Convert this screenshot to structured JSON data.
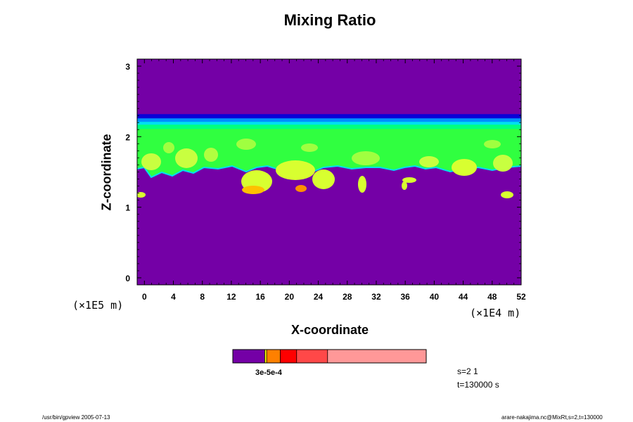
{
  "chart_data": {
    "type": "heatmap",
    "title": "Mixing Ratio",
    "xlabel": "X-coordinate",
    "ylabel": "Z-coordinate",
    "x_unit": "(×1E4 m)",
    "y_unit": "(×1E5 m)",
    "x_ticks": [
      0,
      4,
      8,
      12,
      16,
      20,
      24,
      28,
      32,
      36,
      40,
      44,
      48,
      52
    ],
    "y_ticks": [
      0,
      1,
      2,
      3
    ],
    "xlim": [
      -1,
      52
    ],
    "ylim": [
      -0.1,
      3.1
    ],
    "background_color": "#7400a6",
    "layer": {
      "z_top": 2.3,
      "z_bottom": 1.58,
      "bands": [
        {
          "z_from": 2.32,
          "z_to": 2.24,
          "color": "#0a00d8"
        },
        {
          "z_from": 2.26,
          "z_to": 2.2,
          "color": "#0090ff"
        },
        {
          "z_from": 2.21,
          "z_to": 2.16,
          "color": "#00e0f0"
        },
        {
          "z_from": 2.17,
          "z_to": 2.1,
          "color": "#00ff80"
        },
        {
          "z_from": 2.11,
          "z_to": 1.58,
          "color": "#30ff40"
        }
      ]
    },
    "colorbar": {
      "colors": [
        "#7400a6",
        "#ffff00",
        "#ff8000",
        "#ff0000",
        "#ff4848",
        "#ff9898"
      ],
      "stops": [
        0,
        0.165,
        0.175,
        0.245,
        0.33,
        0.49,
        1.0
      ],
      "label": "3e-5e-4"
    },
    "annotations": [
      "s=2 1",
      "t=130000 s"
    ]
  },
  "footer": {
    "left": "/usr/bin/gpview 2005-07-13",
    "right": "arare-nakajima.nc@MixRt,s=2,t=130000"
  }
}
